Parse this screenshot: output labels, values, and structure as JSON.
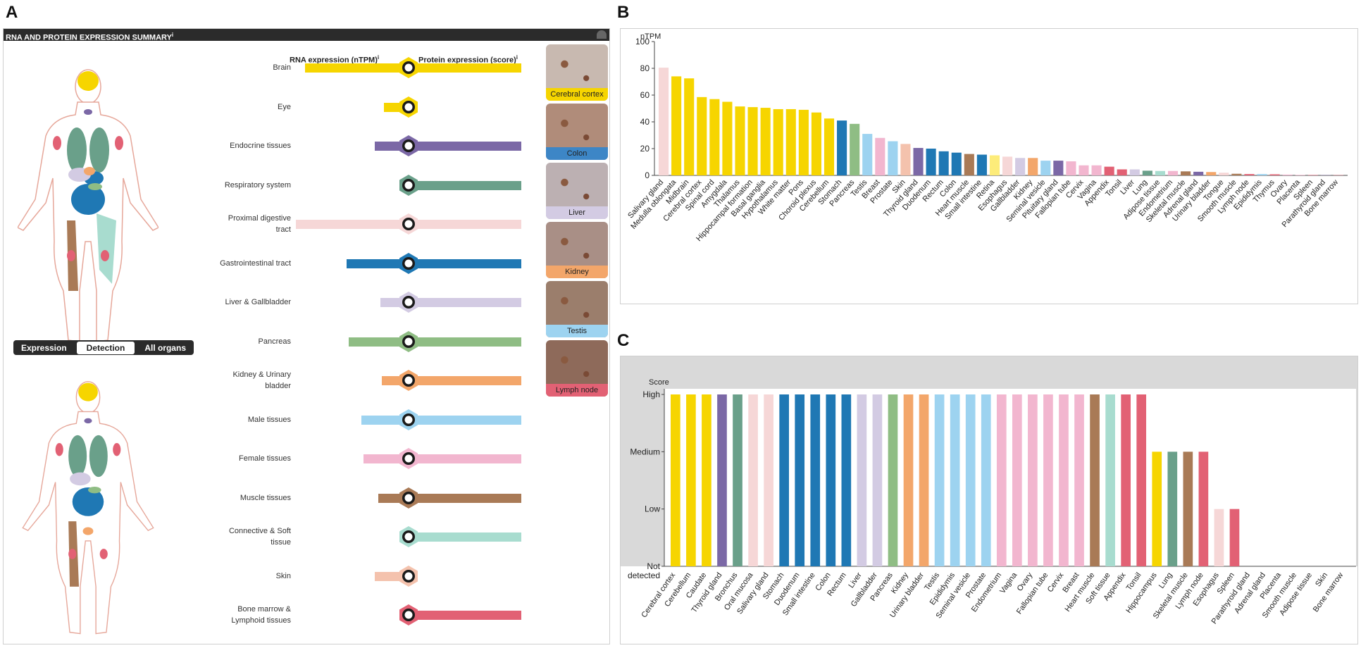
{
  "panels": {
    "a": "A",
    "b": "B",
    "c": "C"
  },
  "summary": {
    "header": "RNA AND PROTEIN EXPRESSION SUMMARY",
    "info_mark": "i",
    "rna_col": "RNA expression (nTPM)",
    "protein_col": "Protein expression (score)",
    "toggle": [
      "Expression",
      "Detection",
      "All organs"
    ],
    "toggle_active": 1,
    "tissues": [
      {
        "lines": [
          "Brain"
        ],
        "color": "#f6d500",
        "rna": 0.92,
        "protein": 1.0
      },
      {
        "lines": [
          "Eye"
        ],
        "color": "#f6d500",
        "rna": 0.22,
        "protein": 0.0
      },
      {
        "lines": [
          "Endocrine tissues"
        ],
        "color": "#7b68a6",
        "rna": 0.3,
        "protein": 1.0
      },
      {
        "lines": [
          "Respiratory system"
        ],
        "color": "#6aa08a",
        "rna": 0.07,
        "protein": 1.0
      },
      {
        "lines": [
          "Proximal digestive",
          "tract"
        ],
        "color": "#f6d7d7",
        "rna": 1.0,
        "protein": 1.0
      },
      {
        "lines": [
          "Gastrointestinal tract"
        ],
        "color": "#1f78b4",
        "rna": 0.55,
        "protein": 1.0
      },
      {
        "lines": [
          "Liver & Gallbladder"
        ],
        "color": "#d3cbe3",
        "rna": 0.25,
        "protein": 1.0
      },
      {
        "lines": [
          "Pancreas"
        ],
        "color": "#8fbd84",
        "rna": 0.53,
        "protein": 1.0
      },
      {
        "lines": [
          "Kidney & Urinary",
          "bladder"
        ],
        "color": "#f3a66a",
        "rna": 0.24,
        "protein": 1.0
      },
      {
        "lines": [
          "Male tissues"
        ],
        "color": "#9dd3f0",
        "rna": 0.42,
        "protein": 1.0
      },
      {
        "lines": [
          "Female tissues"
        ],
        "color": "#f2b6cf",
        "rna": 0.4,
        "protein": 1.0
      },
      {
        "lines": [
          "Muscle tissues"
        ],
        "color": "#a97a56",
        "rna": 0.27,
        "protein": 1.0
      },
      {
        "lines": [
          "Connective & Soft",
          "tissue"
        ],
        "color": "#a8dccf",
        "rna": 0.07,
        "protein": 1.0
      },
      {
        "lines": [
          "Skin"
        ],
        "color": "#f4c2ad",
        "rna": 0.3,
        "protein": 0.0
      },
      {
        "lines": [
          "Bone marrow &",
          "Lymphoid tissues"
        ],
        "color": "#e26174",
        "rna": 0.08,
        "protein": 1.0
      }
    ],
    "images": [
      {
        "label": "Cerebral cortex",
        "label_color": "#f6d500",
        "bg": "#c8b9b0"
      },
      {
        "label": "Colon",
        "label_color": "#3d86c6",
        "bg": "#b08c7a"
      },
      {
        "label": "Liver",
        "label_color": "#d3cbe3",
        "bg": "#bcb0b2"
      },
      {
        "label": "Kidney",
        "label_color": "#f3a66a",
        "bg": "#a98f86"
      },
      {
        "label": "Testis",
        "label_color": "#9dd3f0",
        "bg": "#9b7e6c"
      },
      {
        "label": "Lymph node",
        "label_color": "#e26174",
        "bg": "#8e6a5a"
      }
    ]
  },
  "chart_data": [
    {
      "type": "bar",
      "title": "",
      "ylabel": "nTPM",
      "xlabel": "",
      "ylim": [
        0,
        100
      ],
      "yticks": [
        0,
        20,
        40,
        60,
        80,
        100
      ],
      "categories": [
        "Salivary gland",
        "Medulla oblongata",
        "Midbrain",
        "Cerebral cortex",
        "Spinal cord",
        "Amygdala",
        "Thalamus",
        "Hippocampal formation",
        "Basal ganglia",
        "Hypothalamus",
        "White matter",
        "Pons",
        "Choroid plexus",
        "Cerebellum",
        "Stomach",
        "Pancreas",
        "Testis",
        "Breast",
        "Prostate",
        "Skin",
        "Thyroid gland",
        "Duodenum",
        "Rectum",
        "Colon",
        "Heart muscle",
        "Small intestine",
        "Retina",
        "Esophagus",
        "Gallbladder",
        "Kidney",
        "Seminal vesicle",
        "Pituitary gland",
        "Fallopian tube",
        "Cervix",
        "Vagina",
        "Appendix",
        "Tonsil",
        "Liver",
        "Lung",
        "Adipose tissue",
        "Endometrium",
        "Skeletal muscle",
        "Adrenal gland",
        "Urinary bladder",
        "Tongue",
        "Smooth muscle",
        "Lymph node",
        "Epididymis",
        "Thymus",
        "Ovary",
        "Placenta",
        "Spleen",
        "Parathyroid gland",
        "Bone marrow"
      ],
      "values": [
        80.5,
        74,
        72.5,
        58.5,
        57,
        55,
        51.5,
        51,
        50.5,
        49.5,
        49.5,
        49,
        47,
        42.5,
        41,
        38.5,
        31,
        28,
        25.5,
        23.5,
        20.5,
        20,
        18,
        17,
        16,
        15.5,
        15,
        14,
        13,
        13,
        11,
        11,
        10.5,
        7.5,
        7.5,
        6.5,
        4.5,
        4.5,
        3.5,
        3.3,
        3.3,
        3,
        2.7,
        2.5,
        2,
        1.2,
        1,
        1,
        0.8,
        0.6,
        0.4,
        0.3,
        0.2,
        0.2
      ],
      "colors": [
        "#f6d7d7",
        "#f6d500",
        "#f6d500",
        "#f6d500",
        "#f6d500",
        "#f6d500",
        "#f6d500",
        "#f6d500",
        "#f6d500",
        "#f6d500",
        "#f6d500",
        "#f6d500",
        "#f6d500",
        "#f6d500",
        "#1f78b4",
        "#8fbd84",
        "#9dd3f0",
        "#f2b6cf",
        "#9dd3f0",
        "#f4c2ad",
        "#7b68a6",
        "#1f78b4",
        "#1f78b4",
        "#1f78b4",
        "#a97a56",
        "#1f78b4",
        "#fdec7a",
        "#f6d7d7",
        "#d3cbe3",
        "#f3a66a",
        "#9dd3f0",
        "#7b68a6",
        "#f2b6cf",
        "#f2b6cf",
        "#f2b6cf",
        "#e26174",
        "#e26174",
        "#d3cbe3",
        "#6aa08a",
        "#a8dccf",
        "#f2b6cf",
        "#a97a56",
        "#7b68a6",
        "#f3a66a",
        "#f6d7d7",
        "#a97a56",
        "#e26174",
        "#9dd3f0",
        "#e26174",
        "#f2b6cf",
        "#f2b6cf",
        "#e26174",
        "#7b68a6",
        "#e26174"
      ]
    },
    {
      "type": "bar",
      "title": "",
      "ylabel": "Score",
      "xlabel": "",
      "ylim": [
        0,
        3
      ],
      "yticks": [
        0,
        1,
        2,
        3
      ],
      "ytick_labels": [
        "Not detected",
        "Low",
        "Medium",
        "High"
      ],
      "categories": [
        "Cerebral cortex",
        "Cerebellum",
        "Caudate",
        "Thyroid gland",
        "Bronchus",
        "Oral mucosa",
        "Salivary gland",
        "Stomach",
        "Duodenum",
        "Small intestine",
        "Colon",
        "Rectum",
        "Liver",
        "Gallbladder",
        "Pancreas",
        "Kidney",
        "Urinary bladder",
        "Testis",
        "Epididymis",
        "Seminal vesicle",
        "Prostate",
        "Endometrium",
        "Vagina",
        "Ovary",
        "Fallopian tube",
        "Cervix",
        "Breast",
        "Heart muscle",
        "Soft tissue",
        "Appendix",
        "Tonsil",
        "Hippocampus",
        "Lung",
        "Skeletal muscle",
        "Lymph node",
        "Esophagus",
        "Spleen",
        "Parathyroid gland",
        "Adrenal gland",
        "Placenta",
        "Smooth muscle",
        "Adipose tissue",
        "Skin",
        "Bone marrow"
      ],
      "values": [
        3,
        3,
        3,
        3,
        3,
        3,
        3,
        3,
        3,
        3,
        3,
        3,
        3,
        3,
        3,
        3,
        3,
        3,
        3,
        3,
        3,
        3,
        3,
        3,
        3,
        3,
        3,
        3,
        3,
        3,
        3,
        2,
        2,
        2,
        2,
        1,
        1,
        0,
        0,
        0,
        0,
        0,
        0,
        0
      ],
      "colors": [
        "#f6d500",
        "#f6d500",
        "#f6d500",
        "#7b68a6",
        "#6aa08a",
        "#f6d7d7",
        "#f6d7d7",
        "#1f78b4",
        "#1f78b4",
        "#1f78b4",
        "#1f78b4",
        "#1f78b4",
        "#d3cbe3",
        "#d3cbe3",
        "#8fbd84",
        "#f3a66a",
        "#f3a66a",
        "#9dd3f0",
        "#9dd3f0",
        "#9dd3f0",
        "#9dd3f0",
        "#f2b6cf",
        "#f2b6cf",
        "#f2b6cf",
        "#f2b6cf",
        "#f2b6cf",
        "#f2b6cf",
        "#a97a56",
        "#a8dccf",
        "#e26174",
        "#e26174",
        "#f6d500",
        "#6aa08a",
        "#a97a56",
        "#e26174",
        "#f6d7d7",
        "#e26174",
        "#7b68a6",
        "#7b68a6",
        "#f2b6cf",
        "#a97a56",
        "#a8dccf",
        "#f4c2ad",
        "#e26174"
      ]
    }
  ]
}
